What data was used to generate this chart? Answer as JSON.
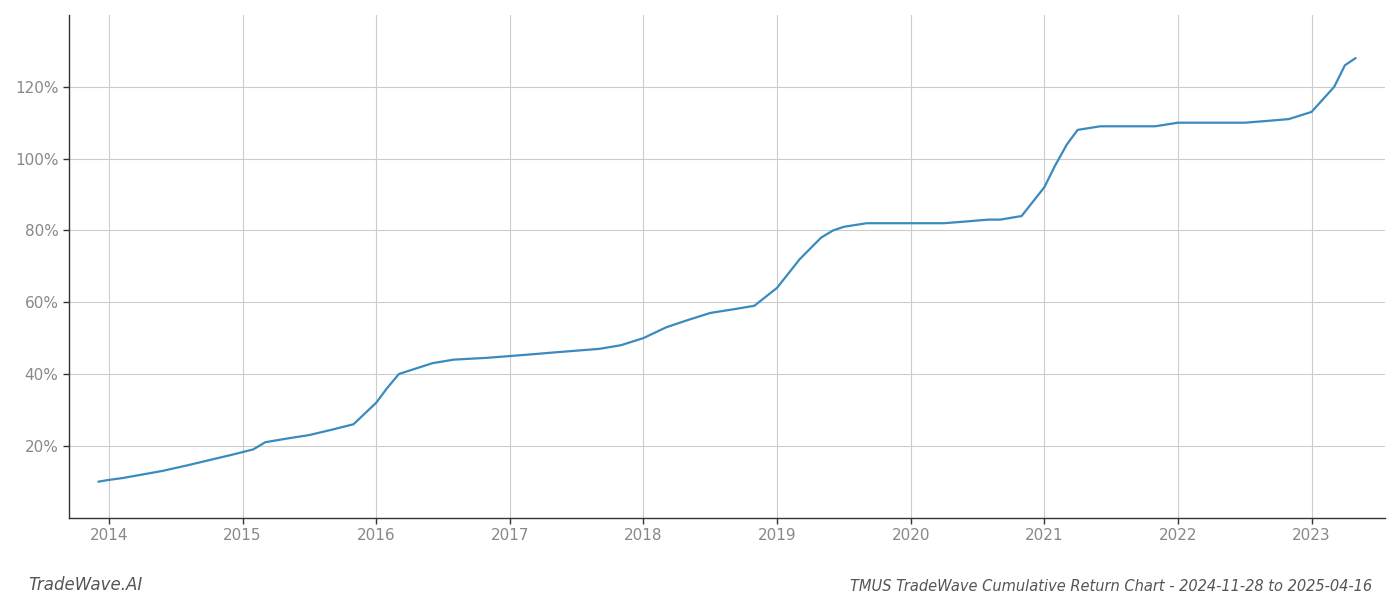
{
  "title": "TMUS TradeWave Cumulative Return Chart - 2024-11-28 to 2025-04-16",
  "watermark": "TradeWave.AI",
  "line_color": "#3a8abf",
  "background_color": "#ffffff",
  "grid_color": "#cccccc",
  "x_values": [
    2013.92,
    2014.0,
    2014.1,
    2014.25,
    2014.4,
    2014.58,
    2014.75,
    2014.92,
    2015.08,
    2015.17,
    2015.33,
    2015.5,
    2015.67,
    2015.83,
    2016.0,
    2016.08,
    2016.17,
    2016.42,
    2016.58,
    2016.83,
    2017.0,
    2017.17,
    2017.33,
    2017.5,
    2017.67,
    2017.83,
    2018.0,
    2018.17,
    2018.33,
    2018.5,
    2018.67,
    2018.75,
    2018.83,
    2019.0,
    2019.17,
    2019.25,
    2019.33,
    2019.42,
    2019.5,
    2019.67,
    2019.83,
    2020.0,
    2020.08,
    2020.25,
    2020.42,
    2020.58,
    2020.67,
    2020.83,
    2021.0,
    2021.08,
    2021.17,
    2021.25,
    2021.42,
    2021.5,
    2021.67,
    2021.83,
    2022.0,
    2022.17,
    2022.33,
    2022.5,
    2022.67,
    2022.83,
    2023.0,
    2023.17,
    2023.25,
    2023.33
  ],
  "y_values": [
    10,
    10.5,
    11,
    12,
    13,
    14.5,
    16,
    17.5,
    19,
    21,
    22,
    23,
    24.5,
    26,
    32,
    36,
    40,
    43,
    44,
    44.5,
    45,
    45.5,
    46,
    46.5,
    47,
    48,
    50,
    53,
    55,
    57,
    58,
    58.5,
    59,
    64,
    72,
    75,
    78,
    80,
    81,
    82,
    82,
    82,
    82,
    82,
    82.5,
    83,
    83,
    84,
    92,
    98,
    104,
    108,
    109,
    109,
    109,
    109,
    110,
    110,
    110,
    110,
    110.5,
    111,
    113,
    120,
    126,
    128
  ],
  "ytick_values": [
    20,
    40,
    60,
    80,
    100,
    120
  ],
  "ytick_labels": [
    "20%",
    "40%",
    "60%",
    "80%",
    "100%",
    "120%"
  ],
  "xtick_values": [
    2014,
    2015,
    2016,
    2017,
    2018,
    2019,
    2020,
    2021,
    2022,
    2023
  ],
  "xlim": [
    2013.7,
    2023.55
  ],
  "ylim": [
    0,
    140
  ],
  "line_width": 1.6,
  "title_fontsize": 10.5,
  "watermark_fontsize": 12,
  "tick_fontsize": 11,
  "tick_color": "#888888",
  "spine_color": "#333333"
}
